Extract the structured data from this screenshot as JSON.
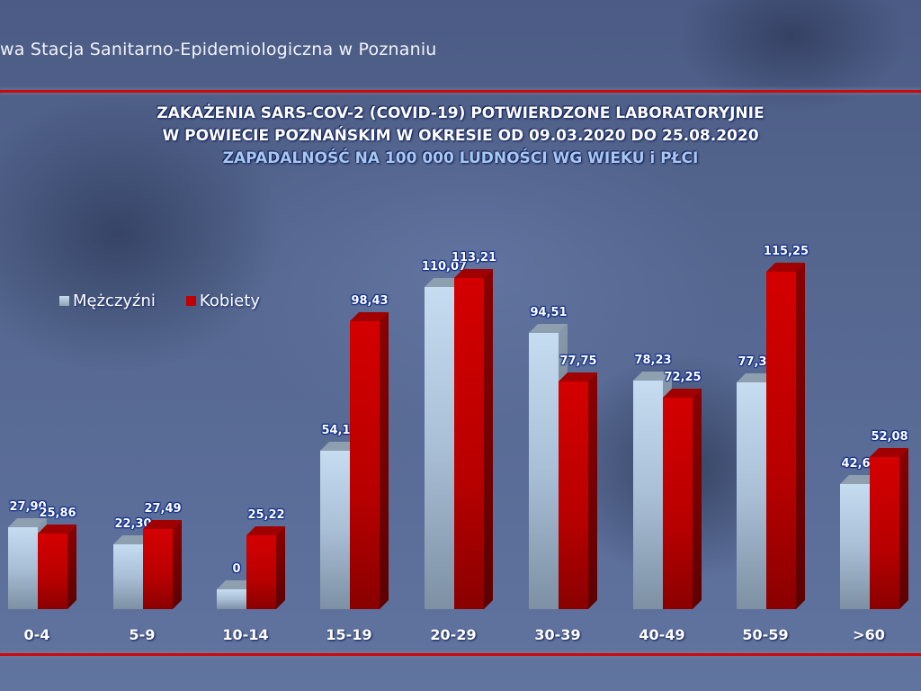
{
  "header": {
    "organization": "wa Stacja Sanitarno-Epidemiologiczna w Poznaniu",
    "accent_line_color": "#cc0a0a"
  },
  "title": {
    "line1": "ZAKAŻENIA SARS-COV-2 (COVID-19) POTWIERDZONE LABORATORYJNIE",
    "line2": "W POWIECIE POZNAŃSKIM W OKRESIE OD 09.03.2020 DO 25.08.2020",
    "line3": "ZAPADALNOŚĆ NA 100 000 LUDNOŚCI WG WIEKU i PŁCI"
  },
  "legend": {
    "men": "Mężczyźni",
    "women": "Kobiety"
  },
  "chart_data": {
    "type": "bar",
    "title": "ZAKAŻENIA SARS-COV-2 (COVID-19) POTWIERDZONE LABORATORYJNIE W POWIECIE POZNAŃSKIM W OKRESIE OD 09.03.2020 DO 25.08.2020 — ZAPADALNOŚĆ NA 100 000 LUDNOŚCI WG WIEKU i PŁCI",
    "xlabel": "",
    "ylabel": "",
    "categories": [
      "0-4",
      "5-9",
      "10-14",
      "15-19",
      "20-29",
      "30-39",
      "40-49",
      "50-59",
      ">60"
    ],
    "series": [
      {
        "name": "Mężczyźni",
        "color": "#b8cfe6",
        "values": [
          27.9,
          22.3,
          0,
          54.14,
          110.07,
          94.51,
          78.23,
          77.39,
          42.66
        ]
      },
      {
        "name": "Kobiety",
        "color": "#c00000",
        "values": [
          25.86,
          27.49,
          25.22,
          98.43,
          113.21,
          77.75,
          72.25,
          115.25,
          52.08
        ]
      }
    ],
    "labels": {
      "men": [
        "27,90",
        "22,30",
        "0",
        "54,14",
        "110,07",
        "94,51",
        "78,23",
        "77,39",
        "42,66"
      ],
      "women": [
        "25,86",
        "27,49",
        "25,22",
        "98,43",
        "113,21",
        "77,75",
        "72,25",
        "115,25",
        "52,08"
      ]
    },
    "ylim": [
      0,
      120
    ],
    "grid": false,
    "legend_position": "upper-left",
    "style": "3d-column"
  }
}
